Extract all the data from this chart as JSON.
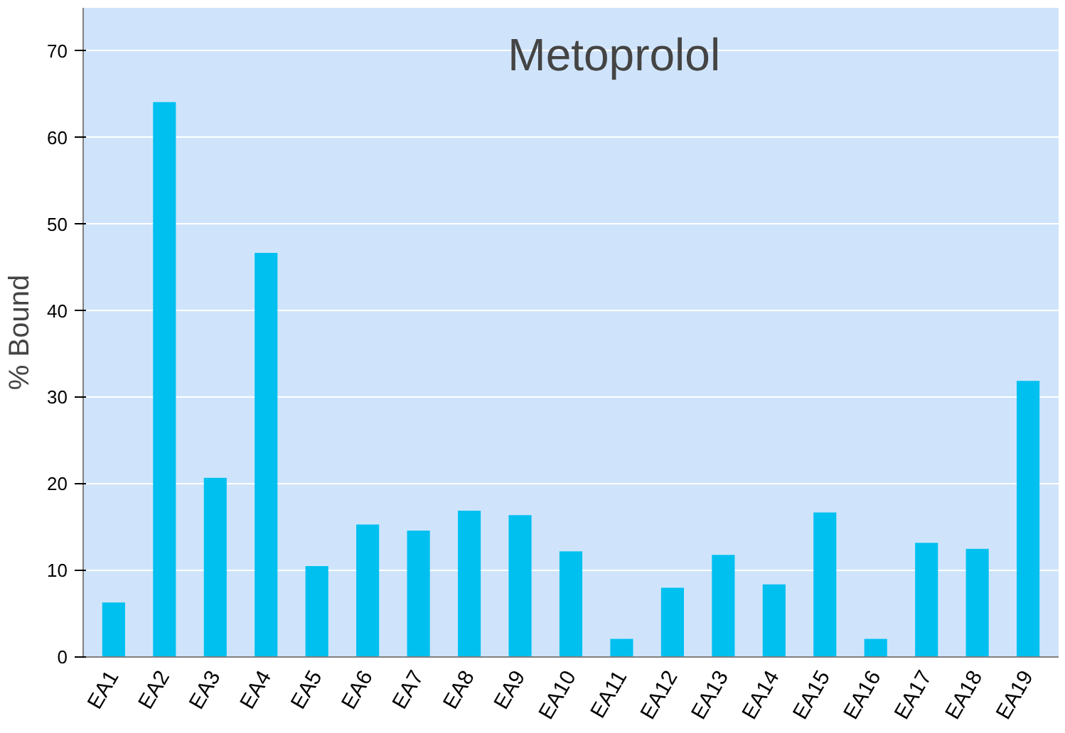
{
  "chart_data": {
    "type": "bar",
    "title": "Metoprolol",
    "ylabel": "% Bound",
    "categories": [
      "EA1",
      "EA2",
      "EA3",
      "EA4",
      "EA5",
      "EA6",
      "EA7",
      "EA8",
      "EA9",
      "EA10",
      "EA11",
      "EA12",
      "EA13",
      "EA14",
      "EA15",
      "EA16",
      "EA17",
      "EA18",
      "EA19"
    ],
    "values": [
      6.3,
      64.1,
      20.7,
      46.7,
      10.5,
      15.3,
      14.6,
      16.9,
      16.4,
      12.2,
      2.1,
      8.0,
      11.8,
      8.4,
      16.7,
      2.1,
      13.2,
      12.5,
      31.9
    ],
    "color": "#00c0f0",
    "ylim": [
      0,
      75
    ],
    "yticks": [
      0,
      10,
      20,
      30,
      40,
      50,
      60,
      70
    ],
    "grid": "y"
  }
}
